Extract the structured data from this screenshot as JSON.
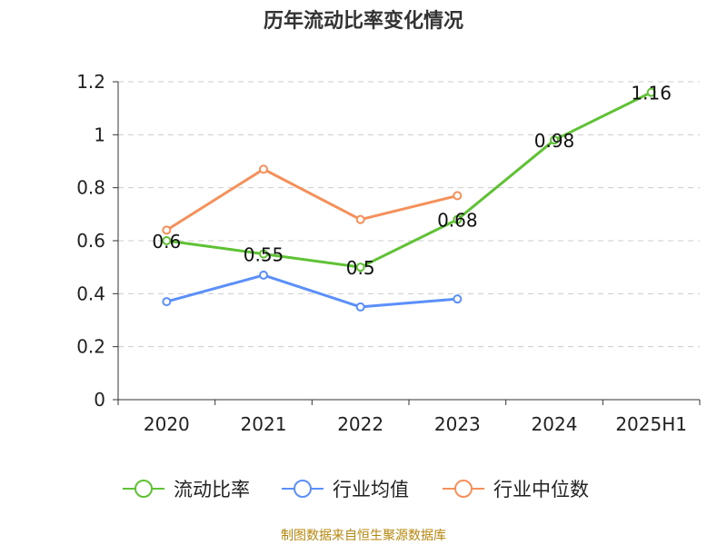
{
  "chart_data": {
    "type": "line",
    "title": "历年流动比率变化情况",
    "categories": [
      "2020",
      "2021",
      "2022",
      "2023",
      "2024",
      "2025H1"
    ],
    "ylim": [
      0,
      1.2
    ],
    "yticks": [
      0,
      0.2,
      0.4,
      0.6,
      0.8,
      1,
      1.2
    ],
    "grid": true,
    "legend_position": "bottom",
    "series": [
      {
        "name": "流动比率",
        "color": "#5fc234",
        "values": [
          0.6,
          0.55,
          0.5,
          0.68,
          0.98,
          1.16
        ],
        "show_labels": true
      },
      {
        "name": "行业均值",
        "color": "#5b8ff9",
        "values": [
          0.37,
          0.47,
          0.35,
          0.38,
          null,
          null
        ],
        "show_labels": false
      },
      {
        "name": "行业中位数",
        "color": "#f6905a",
        "values": [
          0.64,
          0.87,
          0.68,
          0.77,
          null,
          null
        ],
        "show_labels": false
      }
    ]
  },
  "footer": {
    "source": "制图数据来自恒生聚源数据库",
    "color": "#b8860b"
  }
}
